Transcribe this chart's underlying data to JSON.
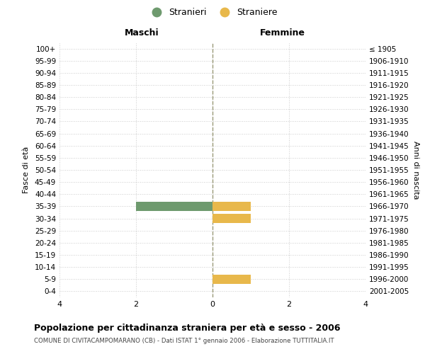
{
  "age_groups": [
    "100+",
    "95-99",
    "90-94",
    "85-89",
    "80-84",
    "75-79",
    "70-74",
    "65-69",
    "60-64",
    "55-59",
    "50-54",
    "45-49",
    "40-44",
    "35-39",
    "30-34",
    "25-29",
    "20-24",
    "15-19",
    "10-14",
    "5-9",
    "0-4"
  ],
  "birth_years": [
    "≤ 1905",
    "1906-1910",
    "1911-1915",
    "1916-1920",
    "1921-1925",
    "1926-1930",
    "1931-1935",
    "1936-1940",
    "1941-1945",
    "1946-1950",
    "1951-1955",
    "1956-1960",
    "1961-1965",
    "1966-1970",
    "1971-1975",
    "1976-1980",
    "1981-1985",
    "1986-1990",
    "1991-1995",
    "1996-2000",
    "2001-2005"
  ],
  "male_values": [
    0,
    0,
    0,
    0,
    0,
    0,
    0,
    0,
    0,
    0,
    0,
    0,
    0,
    2,
    0,
    0,
    0,
    0,
    0,
    0,
    0
  ],
  "female_values": [
    0,
    0,
    0,
    0,
    0,
    0,
    0,
    0,
    0,
    0,
    0,
    0,
    0,
    1,
    1,
    0,
    0,
    0,
    0,
    1,
    0
  ],
  "male_color": "#6e9a6e",
  "female_color": "#e8b84b",
  "xlim": [
    -4,
    4
  ],
  "xticks": [
    -4,
    -2,
    0,
    2,
    4
  ],
  "title": "Popolazione per cittadinanza straniera per età e sesso - 2006",
  "subtitle": "COMUNE DI CIVITACAMPOMARANO (CB) - Dati ISTAT 1° gennaio 2006 - Elaborazione TUTTITALIA.IT",
  "ylabel_left": "Fasce di età",
  "ylabel_right": "Anni di nascita",
  "legend_male": "Stranieri",
  "legend_female": "Straniere",
  "maschi_label": "Maschi",
  "femmine_label": "Femmine",
  "bg_color": "#ffffff",
  "grid_color": "#cccccc",
  "bar_height": 0.75,
  "center_line_color": "#999977"
}
